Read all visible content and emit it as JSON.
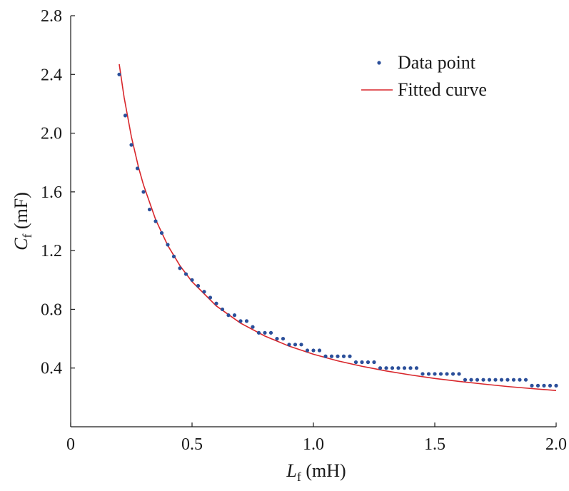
{
  "chart_data": {
    "type": "scatter",
    "title": "",
    "xlabel": {
      "main": "L",
      "sub": "f",
      "unit": " (mH)"
    },
    "ylabel": {
      "main": "C",
      "sub": "f",
      "unit": " (mF)"
    },
    "xlim": [
      0,
      2.0
    ],
    "ylim": [
      0,
      2.8
    ],
    "x_ticks": [
      0,
      0.5,
      1.0,
      1.5,
      2.0
    ],
    "x_tick_labels": [
      "0",
      "0.5",
      "1.0",
      "1.5",
      "2.0"
    ],
    "y_ticks": [
      0.4,
      0.8,
      1.2,
      1.6,
      2.0,
      2.4,
      2.8
    ],
    "y_tick_labels": [
      "0.4",
      "0.8",
      "1.2",
      "1.6",
      "2.0",
      "2.4",
      "2.8"
    ],
    "grid": false,
    "legend_position": "top-right",
    "colors": {
      "points": "#2b4f9a",
      "curve": "#d8262b",
      "axis": "#1a1a1a"
    },
    "series": [
      {
        "name": "Data point",
        "kind": "scatter",
        "x": [
          0.2,
          0.225,
          0.25,
          0.275,
          0.3,
          0.325,
          0.35,
          0.375,
          0.4,
          0.425,
          0.45,
          0.475,
          0.5,
          0.525,
          0.55,
          0.575,
          0.6,
          0.625,
          0.65,
          0.675,
          0.7,
          0.725,
          0.75,
          0.775,
          0.8,
          0.825,
          0.85,
          0.875,
          0.9,
          0.925,
          0.95,
          0.975,
          1.0,
          1.025,
          1.05,
          1.075,
          1.1,
          1.125,
          1.15,
          1.175,
          1.2,
          1.225,
          1.25,
          1.275,
          1.3,
          1.325,
          1.35,
          1.375,
          1.4,
          1.425,
          1.45,
          1.475,
          1.5,
          1.525,
          1.55,
          1.575,
          1.6,
          1.625,
          1.65,
          1.675,
          1.7,
          1.725,
          1.75,
          1.775,
          1.8,
          1.825,
          1.85,
          1.875,
          1.9,
          1.925,
          1.95,
          1.975,
          2.0
        ],
        "y": [
          2.4,
          2.12,
          1.92,
          1.76,
          1.6,
          1.48,
          1.4,
          1.32,
          1.24,
          1.16,
          1.08,
          1.04,
          1.0,
          0.96,
          0.92,
          0.88,
          0.84,
          0.8,
          0.76,
          0.76,
          0.72,
          0.72,
          0.68,
          0.64,
          0.64,
          0.64,
          0.6,
          0.6,
          0.56,
          0.56,
          0.56,
          0.52,
          0.52,
          0.52,
          0.48,
          0.48,
          0.48,
          0.48,
          0.48,
          0.44,
          0.44,
          0.44,
          0.44,
          0.4,
          0.4,
          0.4,
          0.4,
          0.4,
          0.4,
          0.4,
          0.36,
          0.36,
          0.36,
          0.36,
          0.36,
          0.36,
          0.36,
          0.32,
          0.32,
          0.32,
          0.32,
          0.32,
          0.32,
          0.32,
          0.32,
          0.32,
          0.32,
          0.32,
          0.28,
          0.28,
          0.28,
          0.28,
          0.28
        ]
      },
      {
        "name": "Fitted curve",
        "kind": "line",
        "x": [
          0.2,
          0.22,
          0.25,
          0.28,
          0.3,
          0.35,
          0.4,
          0.45,
          0.5,
          0.6,
          0.7,
          0.8,
          0.9,
          1.0,
          1.1,
          1.2,
          1.3,
          1.4,
          1.5,
          1.6,
          1.7,
          1.8,
          1.9,
          2.0
        ],
        "y": [
          2.47,
          2.245,
          1.976,
          1.764,
          1.647,
          1.411,
          1.235,
          1.098,
          0.988,
          0.823,
          0.706,
          0.618,
          0.549,
          0.494,
          0.449,
          0.412,
          0.38,
          0.353,
          0.329,
          0.309,
          0.291,
          0.274,
          0.26,
          0.247
        ]
      }
    ]
  }
}
